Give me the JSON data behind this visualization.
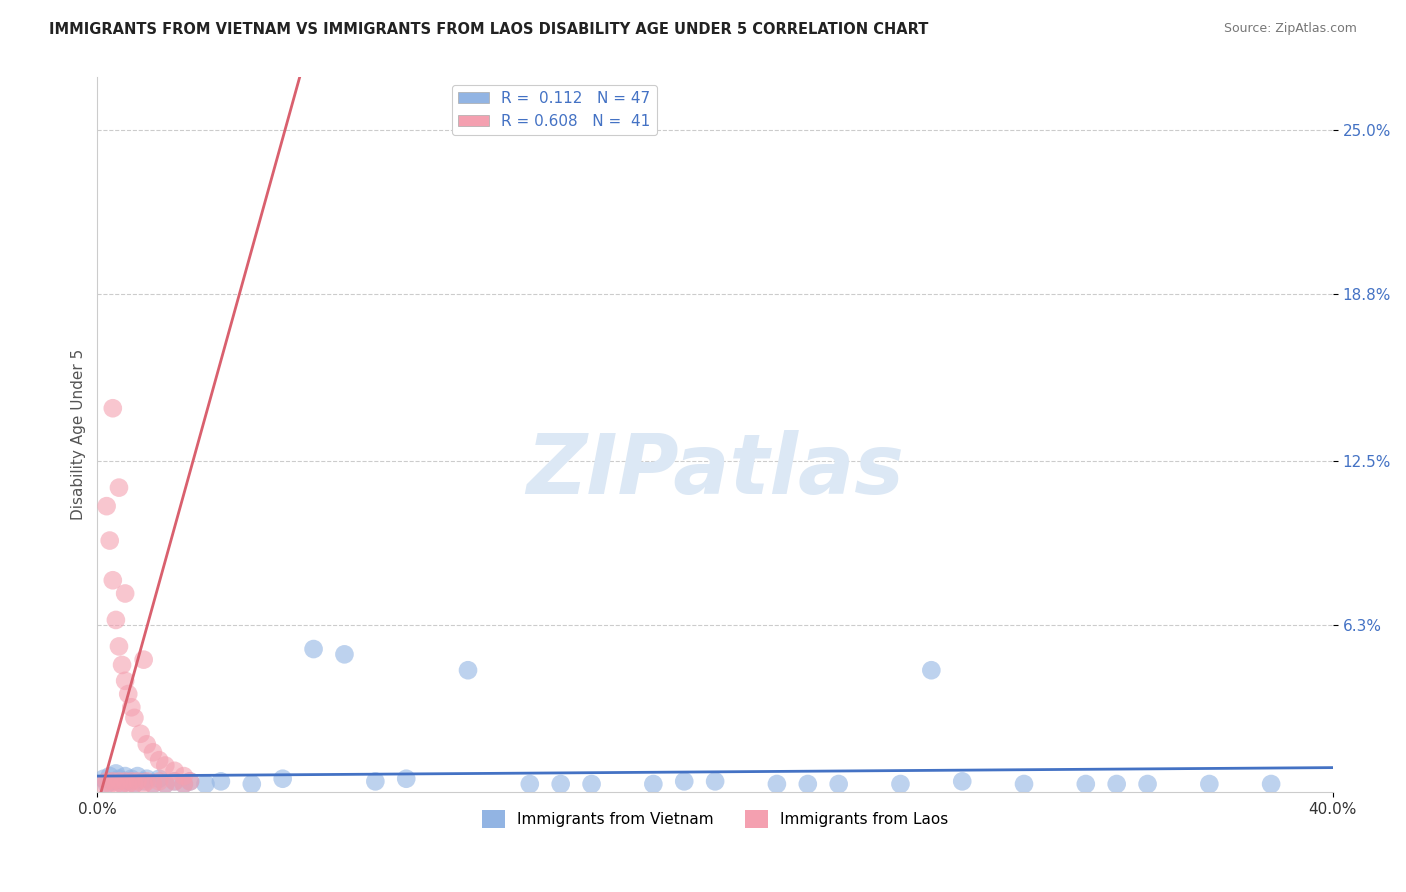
{
  "title": "IMMIGRANTS FROM VIETNAM VS IMMIGRANTS FROM LAOS DISABILITY AGE UNDER 5 CORRELATION CHART",
  "source": "Source: ZipAtlas.com",
  "ylabel_label": "Disability Age Under 5",
  "y_tick_labels": [
    "25.0%",
    "18.8%",
    "12.5%",
    "6.3%"
  ],
  "y_tick_values": [
    0.25,
    0.188,
    0.125,
    0.063
  ],
  "x_min": 0.0,
  "x_max": 0.4,
  "y_min": 0.0,
  "y_max": 0.27,
  "vietnam_color": "#92b4e3",
  "laos_color": "#f4a0b0",
  "vietnam_line_color": "#4472c4",
  "laos_line_color": "#d9606e",
  "vietnam_R": 0.112,
  "vietnam_N": 47,
  "laos_R": 0.608,
  "laos_N": 41,
  "legend_R_color": "#4472c4",
  "watermark": "ZIPatlas",
  "watermark_color": "#dce8f5",
  "title_color": "#222222",
  "background_color": "#ffffff",
  "vietnam_scatter_x": [
    0.002,
    0.003,
    0.004,
    0.005,
    0.006,
    0.007,
    0.008,
    0.009,
    0.01,
    0.011,
    0.012,
    0.013,
    0.015,
    0.016,
    0.018,
    0.02,
    0.022,
    0.025,
    0.028,
    0.03,
    0.035,
    0.04,
    0.05,
    0.06,
    0.07,
    0.08,
    0.09,
    0.1,
    0.12,
    0.14,
    0.16,
    0.18,
    0.2,
    0.22,
    0.24,
    0.26,
    0.28,
    0.3,
    0.32,
    0.34,
    0.36,
    0.38,
    0.15,
    0.19,
    0.23,
    0.27,
    0.33
  ],
  "vietnam_scatter_y": [
    0.005,
    0.003,
    0.006,
    0.004,
    0.007,
    0.005,
    0.003,
    0.006,
    0.004,
    0.005,
    0.003,
    0.006,
    0.004,
    0.005,
    0.003,
    0.005,
    0.003,
    0.004,
    0.003,
    0.004,
    0.003,
    0.004,
    0.003,
    0.005,
    0.054,
    0.052,
    0.004,
    0.005,
    0.046,
    0.003,
    0.003,
    0.003,
    0.004,
    0.003,
    0.003,
    0.003,
    0.004,
    0.003,
    0.003,
    0.003,
    0.003,
    0.003,
    0.003,
    0.004,
    0.003,
    0.046,
    0.003
  ],
  "laos_scatter_x": [
    0.002,
    0.003,
    0.004,
    0.005,
    0.006,
    0.007,
    0.008,
    0.009,
    0.01,
    0.011,
    0.012,
    0.013,
    0.015,
    0.016,
    0.018,
    0.02,
    0.022,
    0.025,
    0.028,
    0.03,
    0.003,
    0.004,
    0.005,
    0.006,
    0.007,
    0.008,
    0.009,
    0.01,
    0.011,
    0.012,
    0.014,
    0.016,
    0.018,
    0.02,
    0.022,
    0.025,
    0.028,
    0.005,
    0.007,
    0.009,
    0.015
  ],
  "laos_scatter_y": [
    0.003,
    0.004,
    0.003,
    0.004,
    0.003,
    0.004,
    0.003,
    0.004,
    0.003,
    0.004,
    0.003,
    0.004,
    0.003,
    0.004,
    0.003,
    0.004,
    0.003,
    0.004,
    0.003,
    0.004,
    0.108,
    0.095,
    0.08,
    0.065,
    0.055,
    0.048,
    0.042,
    0.037,
    0.032,
    0.028,
    0.022,
    0.018,
    0.015,
    0.012,
    0.01,
    0.008,
    0.006,
    0.145,
    0.115,
    0.075,
    0.05
  ],
  "laos_line_slope": 4.2,
  "laos_line_intercept": -0.005,
  "vietnam_line_slope": 0.008,
  "vietnam_line_intercept": 0.006
}
